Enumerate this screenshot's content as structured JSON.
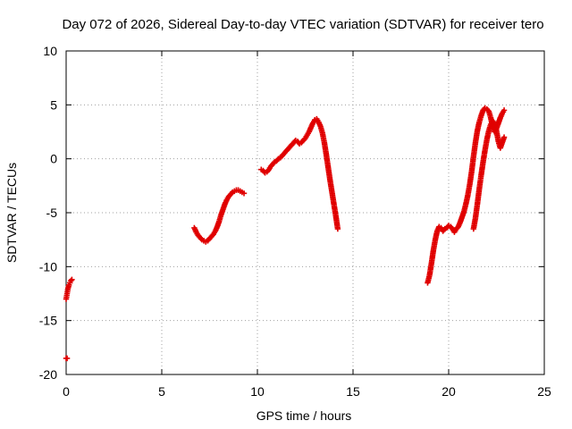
{
  "chart_data": {
    "type": "scatter",
    "title": "Day 072 of 2026, Sidereal Day-to-day VTEC variation (SDTVAR) for receiver tero",
    "xlabel": "GPS time / hours",
    "ylabel": "SDTVAR / TECUs",
    "xlim": [
      0,
      25
    ],
    "ylim": [
      -20,
      10
    ],
    "xticks": [
      0,
      5,
      10,
      15,
      20,
      25
    ],
    "yticks": [
      -20,
      -15,
      -10,
      -5,
      0,
      5,
      10
    ],
    "xtick_labels": [
      "0",
      "5",
      "10",
      "15",
      "20",
      "25"
    ],
    "ytick_labels": [
      "-20",
      "-15",
      "-10",
      "-5",
      "0",
      "5",
      "10"
    ],
    "grid": true,
    "legend": "none",
    "marker": "plus",
    "color": "#e00000",
    "series": [
      {
        "points": [
          [
            0.0,
            -18.5
          ],
          [
            0.05,
            -18.5
          ],
          [
            0.0,
            -13.0
          ],
          [
            0.05,
            -12.5
          ],
          [
            0.1,
            -12.0
          ],
          [
            0.15,
            -11.7
          ],
          [
            0.2,
            -11.5
          ],
          [
            0.25,
            -11.3
          ],
          [
            0.3,
            -11.2
          ]
        ]
      },
      {
        "points": [
          [
            6.7,
            -6.4
          ],
          [
            6.8,
            -6.8
          ],
          [
            6.9,
            -7.1
          ],
          [
            7.0,
            -7.3
          ],
          [
            7.1,
            -7.5
          ],
          [
            7.2,
            -7.6
          ],
          [
            7.3,
            -7.7
          ],
          [
            7.4,
            -7.6
          ],
          [
            7.5,
            -7.4
          ],
          [
            7.6,
            -7.2
          ],
          [
            7.7,
            -7.0
          ],
          [
            7.8,
            -6.7
          ],
          [
            7.9,
            -6.3
          ],
          [
            8.0,
            -5.8
          ],
          [
            8.1,
            -5.2
          ],
          [
            8.2,
            -4.7
          ],
          [
            8.3,
            -4.2
          ],
          [
            8.4,
            -3.8
          ],
          [
            8.5,
            -3.5
          ],
          [
            8.6,
            -3.3
          ],
          [
            8.7,
            -3.1
          ],
          [
            8.8,
            -3.0
          ],
          [
            8.9,
            -2.9
          ],
          [
            9.0,
            -2.9
          ],
          [
            9.1,
            -3.0
          ],
          [
            9.2,
            -3.1
          ],
          [
            9.3,
            -3.2
          ]
        ]
      },
      {
        "points": [
          [
            10.2,
            -1.0
          ],
          [
            10.3,
            -1.1
          ],
          [
            10.4,
            -1.3
          ],
          [
            10.5,
            -1.2
          ],
          [
            10.6,
            -1.0
          ],
          [
            10.7,
            -0.7
          ],
          [
            10.8,
            -0.5
          ],
          [
            10.9,
            -0.3
          ],
          [
            11.0,
            -0.2
          ],
          [
            11.1,
            0.0
          ],
          [
            11.2,
            0.1
          ],
          [
            11.3,
            0.3
          ],
          [
            11.4,
            0.5
          ],
          [
            11.5,
            0.7
          ],
          [
            11.6,
            0.9
          ],
          [
            11.7,
            1.1
          ],
          [
            11.8,
            1.3
          ],
          [
            11.9,
            1.5
          ],
          [
            12.0,
            1.7
          ],
          [
            12.1,
            1.6
          ],
          [
            12.2,
            1.4
          ],
          [
            12.3,
            1.5
          ],
          [
            12.4,
            1.7
          ],
          [
            12.5,
            1.9
          ],
          [
            12.6,
            2.2
          ],
          [
            12.7,
            2.5
          ],
          [
            12.8,
            2.9
          ],
          [
            12.9,
            3.3
          ],
          [
            13.0,
            3.6
          ],
          [
            13.1,
            3.7
          ],
          [
            13.2,
            3.4
          ],
          [
            13.3,
            3.0
          ],
          [
            13.4,
            2.4
          ],
          [
            13.5,
            1.5
          ],
          [
            13.6,
            0.4
          ],
          [
            13.7,
            -0.8
          ],
          [
            13.8,
            -2.0
          ],
          [
            13.9,
            -3.1
          ],
          [
            14.0,
            -4.2
          ],
          [
            14.1,
            -5.3
          ],
          [
            14.2,
            -6.5
          ]
        ]
      },
      {
        "points": [
          [
            18.9,
            -11.5
          ],
          [
            19.0,
            -10.8
          ],
          [
            19.1,
            -9.7
          ],
          [
            19.2,
            -8.5
          ],
          [
            19.3,
            -7.5
          ],
          [
            19.4,
            -6.7
          ],
          [
            19.5,
            -6.3
          ],
          [
            19.6,
            -6.4
          ],
          [
            19.7,
            -6.7
          ],
          [
            19.8,
            -6.5
          ],
          [
            19.9,
            -6.4
          ],
          [
            20.0,
            -6.2
          ],
          [
            20.1,
            -6.3
          ],
          [
            20.2,
            -6.5
          ],
          [
            20.3,
            -6.8
          ],
          [
            20.4,
            -6.5
          ],
          [
            20.5,
            -6.3
          ],
          [
            20.6,
            -5.9
          ],
          [
            20.7,
            -5.4
          ],
          [
            20.8,
            -4.9
          ],
          [
            20.9,
            -4.2
          ],
          [
            21.0,
            -3.4
          ],
          [
            21.1,
            -2.4
          ],
          [
            21.2,
            -1.2
          ],
          [
            21.3,
            0.2
          ],
          [
            21.4,
            1.5
          ],
          [
            21.5,
            2.6
          ],
          [
            21.6,
            3.4
          ],
          [
            21.7,
            4.0
          ],
          [
            21.8,
            4.5
          ],
          [
            21.9,
            4.7
          ],
          [
            22.0,
            4.6
          ],
          [
            22.1,
            4.4
          ],
          [
            22.2,
            3.8
          ],
          [
            22.3,
            3.0
          ],
          [
            22.4,
            2.5
          ],
          [
            22.5,
            2.8
          ],
          [
            22.6,
            3.3
          ],
          [
            22.7,
            3.8
          ],
          [
            22.8,
            4.2
          ],
          [
            22.9,
            4.5
          ]
        ]
      },
      {
        "points": [
          [
            21.3,
            -6.5
          ],
          [
            21.4,
            -5.5
          ],
          [
            21.5,
            -4.2
          ],
          [
            21.6,
            -2.8
          ],
          [
            21.7,
            -1.5
          ],
          [
            21.8,
            -0.3
          ],
          [
            21.9,
            0.8
          ],
          [
            22.0,
            1.8
          ],
          [
            22.1,
            2.6
          ],
          [
            22.2,
            3.2
          ],
          [
            22.3,
            3.5
          ],
          [
            22.4,
            3.3
          ],
          [
            22.5,
            2.6
          ],
          [
            22.6,
            1.6
          ],
          [
            22.7,
            1.0
          ],
          [
            22.8,
            1.5
          ],
          [
            22.9,
            2.0
          ]
        ]
      }
    ]
  }
}
